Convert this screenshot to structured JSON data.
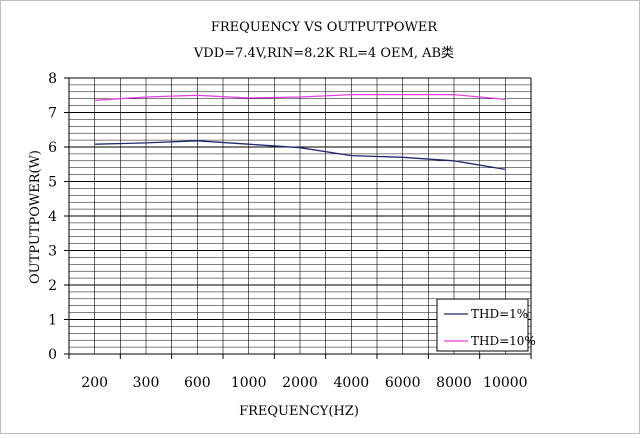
{
  "chart_data": {
    "type": "line",
    "title": "FREQUENCY VS OUTPUTPOWER",
    "subtitle": "VDD=7.4V,RIN=8.2K RL=4 OEM, AB类",
    "xlabel": "FREQUENCY(HZ)",
    "ylabel": "OUTPUTPOWER(W)",
    "categories": [
      "200",
      "300",
      "600",
      "1000",
      "2000",
      "4000",
      "6000",
      "8000",
      "10000"
    ],
    "ylim": [
      0,
      8
    ],
    "y_ticks": [
      "0",
      "1",
      "2",
      "3",
      "4",
      "5",
      "6",
      "7",
      "8"
    ],
    "grid": true,
    "legend_position": "bottom-right",
    "series": [
      {
        "name": "THD=1%",
        "color": "#1f2a6e",
        "values": [
          6.08,
          6.12,
          6.18,
          6.08,
          5.98,
          5.75,
          5.7,
          5.6,
          5.35
        ]
      },
      {
        "name": "THD=10%",
        "color": "#e040e0",
        "values": [
          7.35,
          7.45,
          7.5,
          7.42,
          7.45,
          7.52,
          7.52,
          7.52,
          7.38
        ]
      }
    ]
  }
}
